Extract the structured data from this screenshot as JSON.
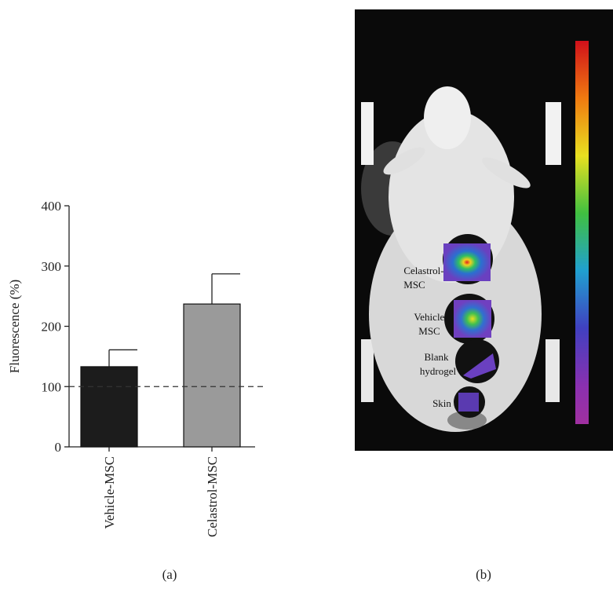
{
  "chart_data": {
    "type": "bar",
    "ylabel": "Fluorescence (%)",
    "categories": [
      "Vehicle-MSC",
      "Celastrol-MSC"
    ],
    "values": [
      133,
      237
    ],
    "errors": [
      28,
      50
    ],
    "colors": [
      "#1c1c1c",
      "#9a9a9a"
    ],
    "reference_line": 100,
    "ylim": [
      0,
      400
    ],
    "yticks": [
      0,
      100,
      200,
      300,
      400
    ]
  },
  "panel_labels": [
    "(a)",
    "(b)"
  ],
  "image_labels": [
    [
      "Celastrol-",
      "MSC"
    ],
    [
      "Vehicle-",
      "MSC"
    ],
    [
      "Blank",
      "hydrogel"
    ],
    [
      "Skin"
    ]
  ]
}
